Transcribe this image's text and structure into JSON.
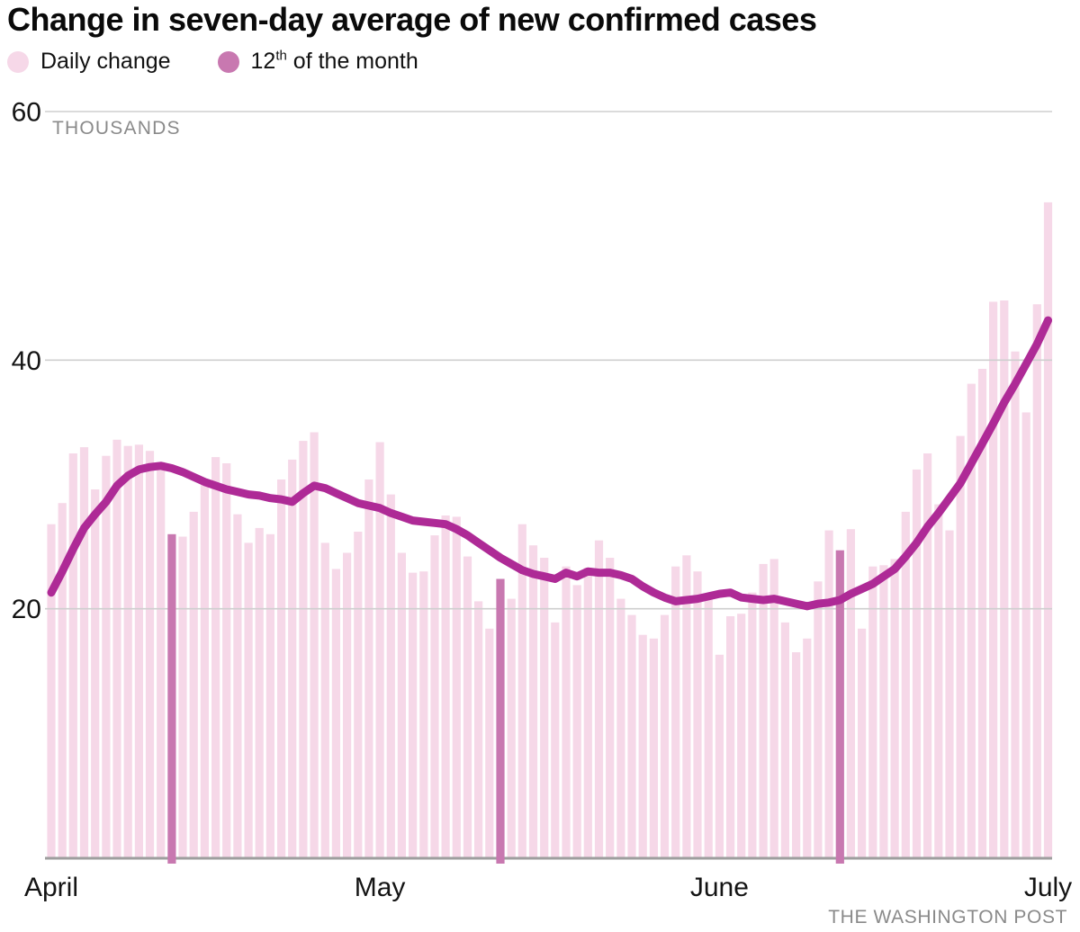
{
  "header": {
    "title": "Change in seven-day average of new confirmed cases"
  },
  "legend": {
    "daily": {
      "label": "Daily change"
    },
    "highlight": {
      "prefix": "12",
      "sup": "th",
      "suffix": " of the month"
    }
  },
  "credit": "THE WASHINGTON POST",
  "chart_data": {
    "type": "bar+line",
    "title": "Change in seven-day average of new confirmed cases",
    "unit_label": "THOUSANDS",
    "ylim": [
      0,
      60
    ],
    "y_ticks": [
      60,
      40,
      20
    ],
    "grid": true,
    "legend_position": "top-left",
    "months": [
      {
        "label": "April",
        "days": 30
      },
      {
        "label": "May",
        "days": 31
      },
      {
        "label": "June",
        "days": 30
      },
      {
        "label": "July",
        "days": 1
      }
    ],
    "x_range": "April 1 to July 1",
    "bar_series_name": "Daily change",
    "line_series_name": "Seven-day average",
    "highlight_series_name": "12th of the month",
    "highlight_day_indices": [
      11,
      41,
      72
    ],
    "bars_thousands": [
      26.8,
      28.5,
      32.5,
      33.0,
      29.6,
      32.3,
      33.6,
      33.1,
      33.2,
      32.7,
      31.8,
      26.0,
      25.8,
      27.8,
      30.4,
      32.2,
      31.7,
      27.6,
      25.3,
      26.5,
      26.0,
      30.4,
      32.0,
      33.5,
      34.2,
      25.3,
      23.2,
      24.5,
      26.2,
      30.4,
      33.4,
      29.2,
      24.5,
      22.9,
      23.0,
      25.9,
      27.5,
      27.4,
      24.2,
      20.6,
      18.4,
      22.4,
      20.8,
      26.8,
      25.1,
      24.1,
      18.9,
      23.4,
      21.9,
      23.3,
      25.5,
      24.1,
      20.8,
      19.5,
      17.9,
      17.6,
      19.5,
      23.4,
      24.3,
      23.0,
      21.2,
      16.3,
      19.4,
      19.6,
      21.3,
      23.6,
      24.0,
      18.9,
      16.5,
      17.6,
      22.2,
      26.3,
      24.7,
      26.4,
      18.4,
      23.4,
      23.5,
      24.0,
      27.8,
      31.2,
      32.5,
      28.4,
      26.3,
      33.9,
      38.1,
      39.3,
      44.7,
      44.8,
      40.7,
      35.8,
      44.5,
      52.7
    ],
    "line_thousands": [
      21.3,
      23.0,
      24.8,
      26.5,
      27.6,
      28.6,
      29.9,
      30.7,
      31.2,
      31.4,
      31.5,
      31.3,
      31.0,
      30.6,
      30.2,
      29.9,
      29.6,
      29.4,
      29.2,
      29.1,
      28.9,
      28.8,
      28.6,
      29.3,
      29.9,
      29.7,
      29.3,
      28.9,
      28.5,
      28.3,
      28.1,
      27.7,
      27.4,
      27.1,
      27.0,
      26.9,
      26.8,
      26.4,
      25.9,
      25.3,
      24.7,
      24.1,
      23.6,
      23.1,
      22.8,
      22.6,
      22.4,
      22.9,
      22.6,
      23.0,
      22.9,
      22.9,
      22.7,
      22.4,
      21.8,
      21.3,
      20.9,
      20.6,
      20.7,
      20.8,
      21.0,
      21.2,
      21.3,
      20.9,
      20.8,
      20.7,
      20.8,
      20.6,
      20.4,
      20.2,
      20.4,
      20.5,
      20.7,
      21.2,
      21.6,
      22.0,
      22.6,
      23.2,
      24.2,
      25.3,
      26.6,
      27.7,
      28.9,
      30.1,
      31.7,
      33.3,
      34.9,
      36.6,
      38.1,
      39.7,
      41.3,
      43.2
    ],
    "colors": {
      "bar": "#f6d8e8",
      "highlight_bar": "#c878b0",
      "line": "#ae2a96",
      "grid": "#cfcfcf",
      "axis": "#9e9e9e",
      "text": "#141414",
      "muted": "#8a8a8a"
    }
  }
}
